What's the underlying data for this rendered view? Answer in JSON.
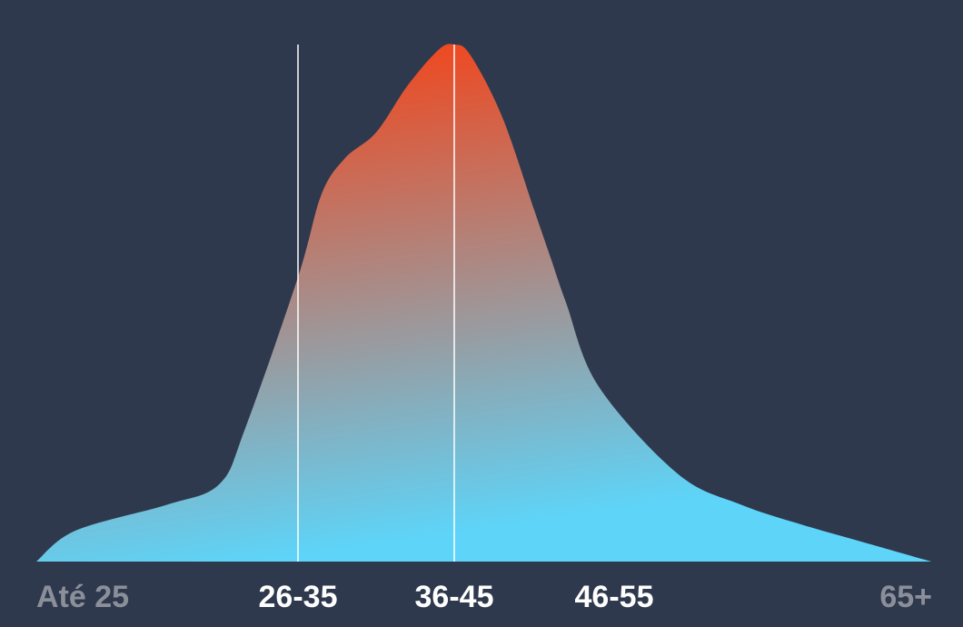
{
  "chart_data": {
    "type": "area",
    "title": "",
    "xlabel": "",
    "ylabel": "",
    "categories": [
      "Até 25",
      "26-35",
      "36-45",
      "46-55",
      "65+"
    ],
    "highlighted_categories": [
      "26-35",
      "36-45",
      "46-55"
    ],
    "marker_lines_at": [
      "26-35",
      "36-45"
    ],
    "ylim": [
      0,
      1
    ],
    "grid": false,
    "legend": "none",
    "series": [
      {
        "x": [
          0,
          0.15,
          0.5,
          0.7,
          0.8,
          1.0,
          1.15,
          1.3,
          1.5,
          1.7,
          1.9,
          2.0,
          2.1,
          2.3,
          2.5,
          2.6,
          2.7,
          2.9,
          3.2,
          3.4,
          3.6,
          3.8,
          4.0
        ],
        "values": [
          0.0,
          0.06,
          0.11,
          0.15,
          0.26,
          0.55,
          0.71,
          0.78,
          0.83,
          0.92,
          0.99,
          1.0,
          0.98,
          0.86,
          0.68,
          0.59,
          0.5,
          0.34,
          0.17,
          0.11,
          0.07,
          0.035,
          0.0
        ]
      }
    ]
  },
  "colors": {
    "background": "#2f394d",
    "gradient_top": "#ec4b24",
    "gradient_bottom": "#5ed4f8",
    "marker_line": "#ffffff",
    "label_highlight": "#ffffff",
    "label_muted": "#8b8f9a"
  }
}
